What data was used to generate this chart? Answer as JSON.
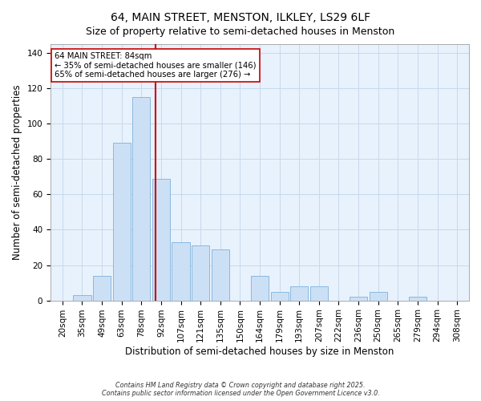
{
  "title": "64, MAIN STREET, MENSTON, ILKLEY, LS29 6LF",
  "subtitle": "Size of property relative to semi-detached houses in Menston",
  "xlabel": "Distribution of semi-detached houses by size in Menston",
  "ylabel": "Number of semi-detached properties",
  "bar_labels": [
    "20sqm",
    "35sqm",
    "49sqm",
    "63sqm",
    "78sqm",
    "92sqm",
    "107sqm",
    "121sqm",
    "135sqm",
    "150sqm",
    "164sqm",
    "179sqm",
    "193sqm",
    "207sqm",
    "222sqm",
    "236sqm",
    "250sqm",
    "265sqm",
    "279sqm",
    "294sqm",
    "308sqm"
  ],
  "bar_values": [
    0,
    3,
    14,
    89,
    115,
    69,
    33,
    31,
    29,
    0,
    14,
    5,
    8,
    8,
    0,
    2,
    5,
    0,
    2,
    0,
    0
  ],
  "bar_color": "#cce0f5",
  "bar_edge_color": "#89b8e0",
  "vline_x_index": 4.7,
  "vline_color": "#cc0000",
  "annotation_title": "64 MAIN STREET: 84sqm",
  "annotation_line1": "← 35% of semi-detached houses are smaller (146)",
  "annotation_line2": "65% of semi-detached houses are larger (276) →",
  "annotation_box_facecolor": "#ffffff",
  "annotation_box_edgecolor": "#cc0000",
  "ylim": [
    0,
    145
  ],
  "yticks": [
    0,
    20,
    40,
    60,
    80,
    100,
    120,
    140
  ],
  "footer1": "Contains HM Land Registry data © Crown copyright and database right 2025.",
  "footer2": "Contains public sector information licensed under the Open Government Licence v3.0.",
  "bg_color": "#ffffff",
  "plot_bg_color": "#e8f2fc",
  "grid_color": "#c8d8ec",
  "title_fontsize": 10,
  "subtitle_fontsize": 9,
  "tick_fontsize": 7.5,
  "label_fontsize": 8.5
}
